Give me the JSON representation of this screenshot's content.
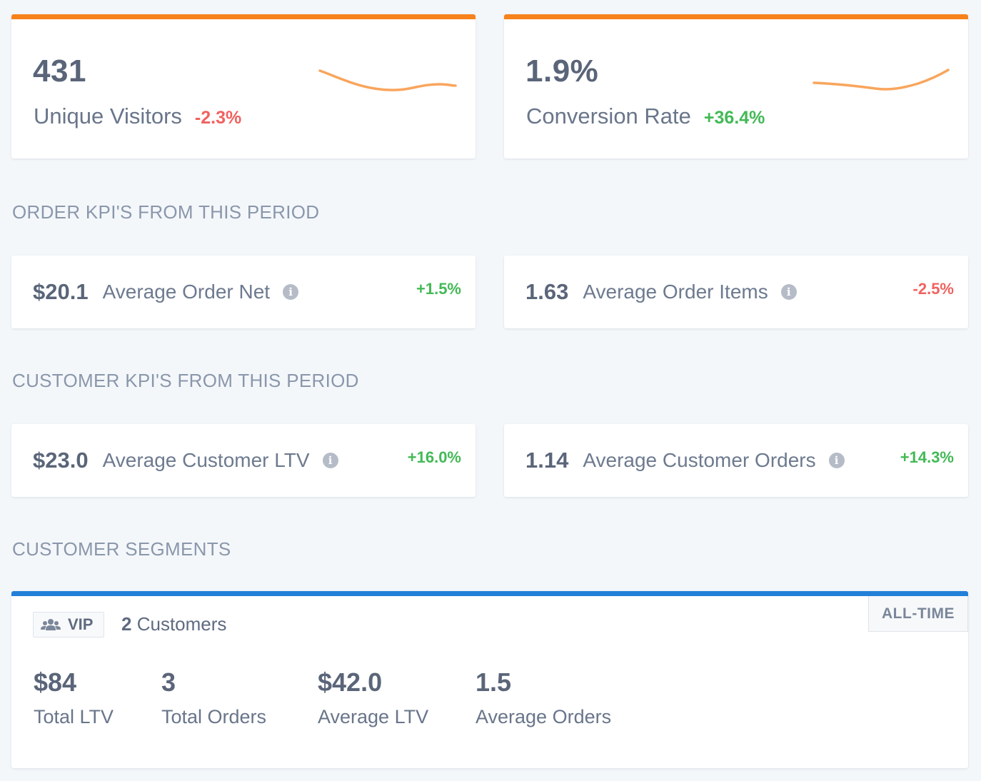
{
  "top_cards": [
    {
      "value": "431",
      "label": "Unique Visitors",
      "delta": "-2.3%",
      "trend": "negative"
    },
    {
      "value": "1.9%",
      "label": "Conversion Rate",
      "delta": "+36.4%",
      "trend": "positive"
    }
  ],
  "colors": {
    "accent_orange": "#f7821b",
    "accent_blue": "#2380d8",
    "sparkline": "#f9a55c",
    "positive": "#43b956",
    "negative": "#f0625f"
  },
  "order_section": {
    "title": "ORDER KPI'S FROM THIS PERIOD"
  },
  "order_kpis": [
    {
      "value": "$20.1",
      "label": "Average Order Net",
      "delta": "+1.5%",
      "icon": "info-icon"
    },
    {
      "value": "1.63",
      "label": "Average Order Items",
      "delta": "-2.5%",
      "icon": "info-icon"
    }
  ],
  "customer_section": {
    "title": "CUSTOMER KPI'S FROM THIS PERIOD"
  },
  "customer_kpis": [
    {
      "value": "$23.0",
      "label": "Average Customer LTV",
      "delta": "+16.0%",
      "icon": "info-icon"
    },
    {
      "value": "1.14",
      "label": "Average Customer Orders",
      "delta": "+14.3%",
      "icon": "info-icon"
    }
  ],
  "segments_section": {
    "title": "CUSTOMER SEGMENTS"
  },
  "segment": {
    "badge": "VIP",
    "badge_icon": "users-icon",
    "count": "2",
    "count_label": "Customers",
    "period_button": "ALL-TIME",
    "stats": [
      {
        "value": "$84",
        "label": "Total LTV"
      },
      {
        "value": "3",
        "label": "Total Orders"
      },
      {
        "value": "$42.0",
        "label": "Average LTV"
      },
      {
        "value": "1.5",
        "label": "Average Orders"
      }
    ]
  }
}
